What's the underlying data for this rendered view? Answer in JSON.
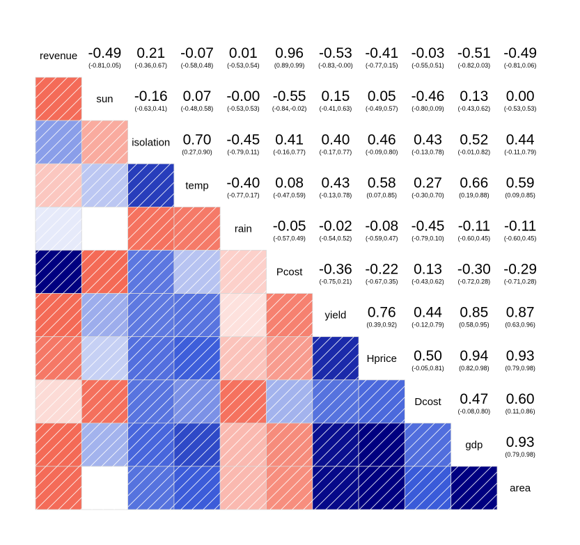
{
  "chart_data": {
    "type": "heatmap",
    "variables": [
      "revenue",
      "sun",
      "isolation",
      "temp",
      "rain",
      "Pcost",
      "yield",
      "Hprice",
      "Dcost",
      "gdp",
      "area"
    ],
    "correlations": [
      [
        1.0,
        -0.49,
        0.21,
        -0.07,
        0.01,
        0.96,
        -0.53,
        -0.41,
        -0.03,
        -0.51,
        -0.49
      ],
      [
        -0.49,
        1.0,
        -0.16,
        0.07,
        -0.0,
        -0.55,
        0.15,
        0.05,
        -0.46,
        0.13,
        0.0
      ],
      [
        0.21,
        -0.16,
        1.0,
        0.7,
        -0.45,
        0.41,
        0.4,
        0.46,
        0.43,
        0.52,
        0.44
      ],
      [
        -0.07,
        0.07,
        0.7,
        1.0,
        -0.4,
        0.08,
        0.43,
        0.58,
        0.27,
        0.66,
        0.59
      ],
      [
        0.01,
        -0.0,
        -0.45,
        -0.4,
        1.0,
        -0.05,
        -0.02,
        -0.08,
        -0.45,
        -0.11,
        -0.11
      ],
      [
        0.96,
        -0.55,
        0.41,
        0.08,
        -0.05,
        1.0,
        -0.36,
        -0.22,
        0.13,
        -0.3,
        -0.29
      ],
      [
        -0.53,
        0.15,
        0.4,
        0.43,
        -0.02,
        -0.36,
        1.0,
        0.76,
        0.44,
        0.85,
        0.87
      ],
      [
        -0.41,
        0.05,
        0.46,
        0.58,
        -0.08,
        -0.22,
        0.76,
        1.0,
        0.5,
        0.94,
        0.93
      ],
      [
        -0.03,
        -0.46,
        0.43,
        0.27,
        -0.45,
        0.13,
        0.44,
        0.5,
        1.0,
        0.47,
        0.6
      ],
      [
        -0.51,
        0.13,
        0.52,
        0.66,
        -0.11,
        -0.3,
        0.85,
        0.94,
        0.47,
        1.0,
        0.93
      ],
      [
        -0.49,
        0.0,
        0.44,
        0.59,
        -0.11,
        -0.29,
        0.87,
        0.93,
        0.6,
        0.93,
        1.0
      ]
    ],
    "upper_labels": [
      [
        null,
        "-0.49",
        "0.21",
        "-0.07",
        "0.01",
        "0.96",
        "-0.53",
        "-0.41",
        "-0.03",
        "-0.51",
        "-0.49"
      ],
      [
        null,
        null,
        "-0.16",
        "0.07",
        "-0.00",
        "-0.55",
        "0.15",
        "0.05",
        "-0.46",
        "0.13",
        "0.00"
      ],
      [
        null,
        null,
        null,
        "0.70",
        "-0.45",
        "0.41",
        "0.40",
        "0.46",
        "0.43",
        "0.52",
        "0.44"
      ],
      [
        null,
        null,
        null,
        null,
        "-0.40",
        "0.08",
        "0.43",
        "0.58",
        "0.27",
        "0.66",
        "0.59"
      ],
      [
        null,
        null,
        null,
        null,
        null,
        "-0.05",
        "-0.02",
        "-0.08",
        "-0.45",
        "-0.11",
        "-0.11"
      ],
      [
        null,
        null,
        null,
        null,
        null,
        null,
        "-0.36",
        "-0.22",
        "0.13",
        "-0.30",
        "-0.29"
      ],
      [
        null,
        null,
        null,
        null,
        null,
        null,
        null,
        "0.76",
        "0.44",
        "0.85",
        "0.87"
      ],
      [
        null,
        null,
        null,
        null,
        null,
        null,
        null,
        null,
        "0.50",
        "0.94",
        "0.93"
      ],
      [
        null,
        null,
        null,
        null,
        null,
        null,
        null,
        null,
        null,
        "0.47",
        "0.60"
      ],
      [
        null,
        null,
        null,
        null,
        null,
        null,
        null,
        null,
        null,
        null,
        "0.93"
      ]
    ],
    "confidence_intervals": [
      [
        null,
        "(-0.81,0.05)",
        "(-0.36,0.67)",
        "(-0.58,0.48)",
        "(-0.53,0.54)",
        "(0.89,0.99)",
        "(-0.83,-0.00)",
        "(-0.77,0.15)",
        "(-0.55,0.51)",
        "(-0.82,0.03)",
        "(-0.81,0.06)"
      ],
      [
        null,
        null,
        "(-0.63,0.41)",
        "(-0.48,0.58)",
        "(-0.53,0.53)",
        "(-0.84,-0.02)",
        "(-0.41,0.63)",
        "(-0.49,0.57)",
        "(-0.80,0.09)",
        "(-0.43,0.62)",
        "(-0.53,0.53)"
      ],
      [
        null,
        null,
        null,
        "(0.27,0.90)",
        "(-0.79,0.11)",
        "(-0.16,0.77)",
        "(-0.17,0.77)",
        "(-0.09,0.80)",
        "(-0.13,0.78)",
        "(-0.01,0.82)",
        "(-0.11,0.79)"
      ],
      [
        null,
        null,
        null,
        null,
        "(-0.77,0.17)",
        "(-0.47,0.59)",
        "(-0.13,0.78)",
        "(0.07,0.85)",
        "(-0.30,0.70)",
        "(0.19,0.88)",
        "(0.09,0.85)"
      ],
      [
        null,
        null,
        null,
        null,
        null,
        "(-0.57,0.49)",
        "(-0.54,0.52)",
        "(-0.59,0.47)",
        "(-0.79,0.10)",
        "(-0.60,0.45)",
        "(-0.60,0.45)"
      ],
      [
        null,
        null,
        null,
        null,
        null,
        null,
        "(-0.75,0.21)",
        "(-0.67,0.35)",
        "(-0.43,0.62)",
        "(-0.72,0.28)",
        "(-0.71,0.28)"
      ],
      [
        null,
        null,
        null,
        null,
        null,
        null,
        null,
        "(0.39,0.92)",
        "(-0.12,0.79)",
        "(0.58,0.95)",
        "(0.63,0.96)"
      ],
      [
        null,
        null,
        null,
        null,
        null,
        null,
        null,
        null,
        "(-0.05,0.81)",
        "(0.82,0.98)",
        "(0.79,0.98)"
      ],
      [
        null,
        null,
        null,
        null,
        null,
        null,
        null,
        null,
        null,
        "(-0.08,0.80)",
        "(0.11,0.86)"
      ],
      [
        null,
        null,
        null,
        null,
        null,
        null,
        null,
        null,
        null,
        null,
        "(0.79,0.98)"
      ]
    ],
    "color_scale": {
      "negative": "#f46a56",
      "zero": "#ffffff",
      "positive": "#000080",
      "mid_positive": "#3a5bd9"
    },
    "lower_triangle": "shaded squares with diagonal hatching",
    "upper_triangle": "correlation values with confidence intervals",
    "diagonal": "variable names",
    "title": "",
    "legend": "none"
  }
}
